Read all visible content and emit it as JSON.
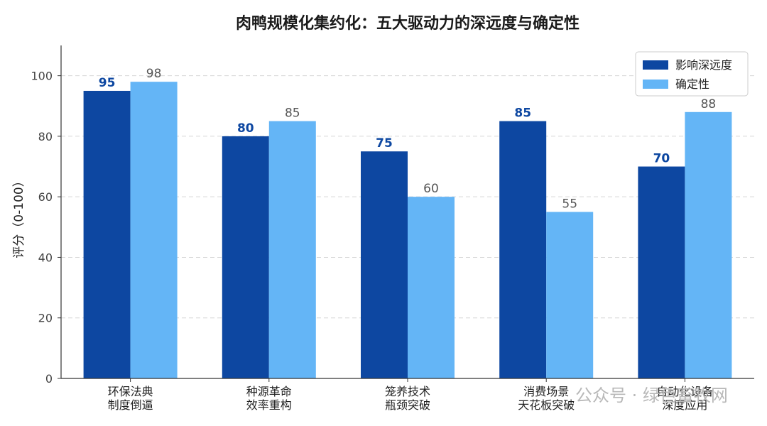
{
  "chart_data": {
    "type": "bar",
    "title": "肉鸭规模化集约化：五大驱动力的深远度与确定性",
    "xlabel": "",
    "ylabel": "评分（0-100）",
    "ylim": [
      0,
      110
    ],
    "yticks": [
      "0",
      "20",
      "40",
      "60",
      "80",
      "100"
    ],
    "categories": [
      [
        "环保法典",
        "制度倒逼"
      ],
      [
        "种源革命",
        "效率重构"
      ],
      [
        "笼养技术",
        "瓶颈突破"
      ],
      [
        "消费场景",
        "天花板突破"
      ],
      [
        "自动化设备",
        "深度应用"
      ]
    ],
    "series": [
      {
        "name": "影响深远度",
        "values": [
          95,
          80,
          75,
          85,
          70
        ],
        "color": "#0d47a1"
      },
      {
        "name": "确定性",
        "values": [
          98,
          85,
          60,
          55,
          88
        ],
        "color": "#64b5f6"
      }
    ],
    "grid": "horizontal dashed",
    "legend": "top-right"
  },
  "watermark": "公众号 · 绿色畜牧网"
}
